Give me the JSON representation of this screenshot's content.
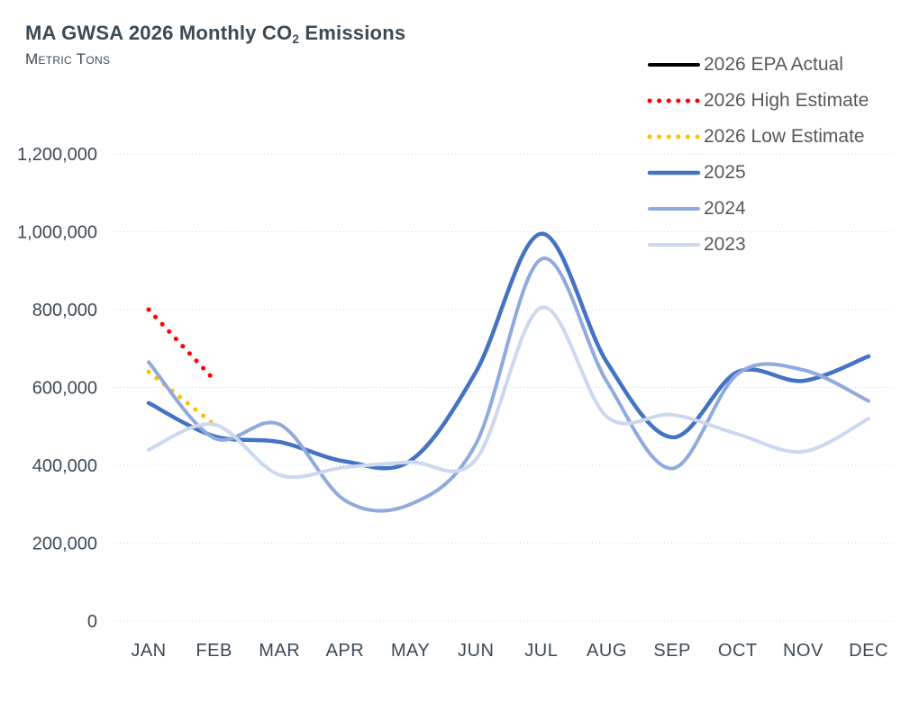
{
  "header": {
    "title_pre": "MA GWSA 2026 Monthly CO",
    "title_sub": "2",
    "title_post": " Emissions",
    "subtitle": "Metric Tons"
  },
  "colors": {
    "axis_text": "#3C4A55",
    "legend_text": "#595959",
    "gridline": "#D9D9D9",
    "epa_actual": "#000000",
    "high_estimate": "#FF0000",
    "low_estimate": "#FFC000",
    "year_2025": "#4472C4",
    "year_2024": "#8FAADC",
    "year_2023": "#CBD8EE"
  },
  "chart_data": {
    "type": "line",
    "title": "MA GWSA 2026 Monthly CO2 Emissions",
    "subtitle_units": "Metric Tons",
    "xlabel": "",
    "ylabel": "Metric Tons",
    "ylim": [
      0,
      1200000
    ],
    "y_tick_step": 200000,
    "y_tick_labels": [
      "0",
      "200,000",
      "400,000",
      "600,000",
      "800,000",
      "1,000,000",
      "1,200,000"
    ],
    "grid": "dotted horizontal gridlines, no axis lines",
    "legend_position": "top-right",
    "categories": [
      "JAN",
      "FEB",
      "MAR",
      "APR",
      "MAY",
      "JUN",
      "JUL",
      "AUG",
      "SEP",
      "OCT",
      "NOV",
      "DEC"
    ],
    "series": [
      {
        "name": "2026 EPA Actual",
        "color": "#000000",
        "style": "solid",
        "width": 4,
        "values": []
      },
      {
        "name": "2026 High Estimate",
        "color": "#FF0000",
        "style": "dotted",
        "width": 5,
        "values": [
          800000,
          620000
        ]
      },
      {
        "name": "2026 Low Estimate",
        "color": "#FFC000",
        "style": "dotted",
        "width": 5,
        "values": [
          640000,
          505000
        ]
      },
      {
        "name": "2025",
        "color": "#4472C4",
        "style": "solid",
        "width": 4.5,
        "values": [
          560000,
          475000,
          460000,
          410000,
          412000,
          640000,
          995000,
          665000,
          472000,
          640000,
          617000,
          680000
        ]
      },
      {
        "name": "2024",
        "color": "#8FAADC",
        "style": "solid",
        "width": 4,
        "values": [
          665000,
          470000,
          505000,
          310000,
          300000,
          455000,
          930000,
          615000,
          392000,
          635000,
          645000,
          565000
        ]
      },
      {
        "name": "2023",
        "color": "#CBD8EE",
        "style": "solid",
        "width": 4,
        "values": [
          440000,
          505000,
          375000,
          395000,
          408000,
          415000,
          805000,
          525000,
          530000,
          480000,
          435000,
          520000
        ]
      }
    ]
  }
}
